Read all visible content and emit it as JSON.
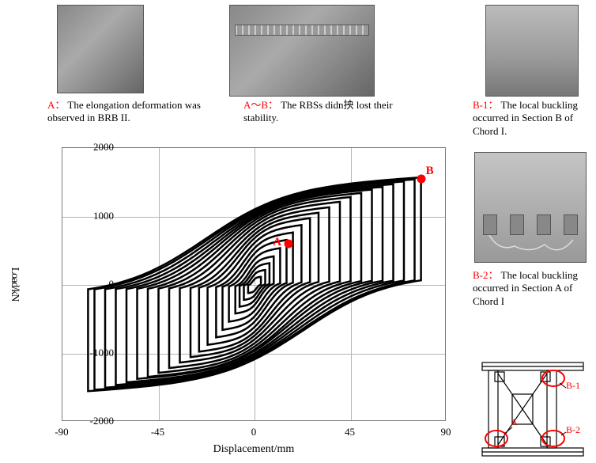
{
  "captions": {
    "A": {
      "tag": "A：",
      "text": "The elongation deformation was observed in BRB II."
    },
    "AB": {
      "tag": "A～B：",
      "text": "The RBSs didn抰 lost their stability."
    },
    "B1": {
      "tag": "B-1：",
      "text": "The local buckling occurred in Section B of Chord I."
    },
    "B2": {
      "tag": "B-2：",
      "text": "The local buckling occurred in Section A of Chord I"
    }
  },
  "chart": {
    "type": "line",
    "xlabel": "Displacement/mm",
    "ylabel": "Load/kN",
    "xlim": [
      -90,
      90
    ],
    "ylim": [
      -2000,
      2000
    ],
    "xticks": [
      -90,
      -45,
      0,
      45,
      90
    ],
    "yticks": [
      -2000,
      -1000,
      0,
      1000,
      2000
    ],
    "grid_color": "#b5b5b5",
    "axis_color": "#7a7a7a",
    "background_color": "#ffffff",
    "line_color": "#000000",
    "line_width": 2.5,
    "loops": [
      {
        "dx": 3,
        "fmax": 120,
        "fmin": -120
      },
      {
        "dx": 5,
        "fmax": 220,
        "fmin": -220
      },
      {
        "dx": 7,
        "fmax": 320,
        "fmin": -320
      },
      {
        "dx": 9,
        "fmax": 420,
        "fmin": -420
      },
      {
        "dx": 12,
        "fmax": 540,
        "fmin": -540
      },
      {
        "dx": 15,
        "fmax": 660,
        "fmin": -660
      },
      {
        "dx": 18,
        "fmax": 770,
        "fmin": -770
      },
      {
        "dx": 22,
        "fmax": 880,
        "fmin": -880
      },
      {
        "dx": 26,
        "fmax": 980,
        "fmin": -980
      },
      {
        "dx": 30,
        "fmax": 1060,
        "fmin": -1060
      },
      {
        "dx": 35,
        "fmax": 1140,
        "fmin": -1140
      },
      {
        "dx": 40,
        "fmax": 1220,
        "fmin": -1220
      },
      {
        "dx": 45,
        "fmax": 1290,
        "fmin": -1290
      },
      {
        "dx": 50,
        "fmax": 1350,
        "fmin": -1350
      },
      {
        "dx": 55,
        "fmax": 1400,
        "fmin": -1380
      },
      {
        "dx": 60,
        "fmax": 1440,
        "fmin": -1430
      },
      {
        "dx": 65,
        "fmax": 1480,
        "fmin": -1470
      },
      {
        "dx": 70,
        "fmax": 1520,
        "fmin": -1510
      },
      {
        "dx": 75,
        "fmax": 1550,
        "fmin": -1540
      },
      {
        "dx": 78,
        "fmax": 1580,
        "fmin": -1560
      }
    ],
    "markers": {
      "A": {
        "x": 16,
        "y": 600,
        "label": "A"
      },
      "B": {
        "x": 78,
        "y": 1550,
        "label": "B"
      }
    },
    "label_fontsize": 14,
    "tick_fontsize": 13
  },
  "schematic": {
    "node_stroke": "#000000",
    "ring_stroke": "#ff0000",
    "labels": {
      "A": {
        "text": "A"
      },
      "B1": {
        "text": "B-1"
      },
      "B2": {
        "text": "B-2"
      }
    }
  }
}
